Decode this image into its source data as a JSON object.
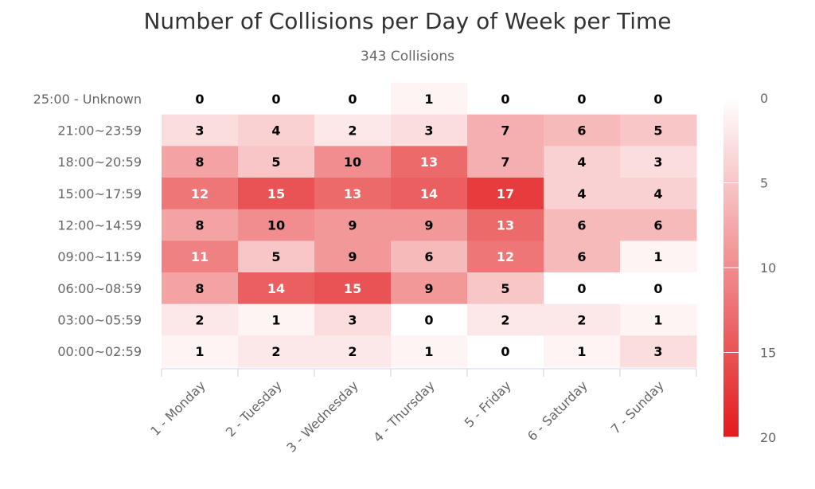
{
  "chart_data": {
    "type": "heatmap",
    "title": "Number of Collisions per Day of Week per Time",
    "subtitle": "343 Collisions",
    "x_categories": [
      "1 - Monday",
      "2 - Tuesday",
      "3 - Wednesday",
      "4 - Thursday",
      "5 - Friday",
      "6 - Saturday",
      "7 - Sunday"
    ],
    "y_categories": [
      "25:00 - Unknown",
      "21:00~23:59",
      "18:00~20:59",
      "15:00~17:59",
      "12:00~14:59",
      "09:00~11:59",
      "06:00~08:59",
      "03:00~05:59",
      "00:00~02:59"
    ],
    "values": [
      [
        0,
        0,
        0,
        1,
        0,
        0,
        0
      ],
      [
        3,
        4,
        2,
        3,
        7,
        6,
        5
      ],
      [
        8,
        5,
        10,
        13,
        7,
        4,
        3
      ],
      [
        12,
        15,
        13,
        14,
        17,
        4,
        4
      ],
      [
        8,
        10,
        9,
        9,
        13,
        6,
        6
      ],
      [
        11,
        5,
        9,
        6,
        12,
        6,
        1
      ],
      [
        8,
        14,
        15,
        9,
        5,
        0,
        0
      ],
      [
        2,
        1,
        3,
        0,
        2,
        2,
        1
      ],
      [
        1,
        2,
        2,
        1,
        0,
        1,
        3
      ]
    ],
    "color_axis": {
      "min": 0,
      "max": 20,
      "ticks": [
        0,
        5,
        10,
        15,
        20
      ],
      "min_color": "#ffffff",
      "max_color": "#e31a1c"
    },
    "legend_position": "right"
  }
}
